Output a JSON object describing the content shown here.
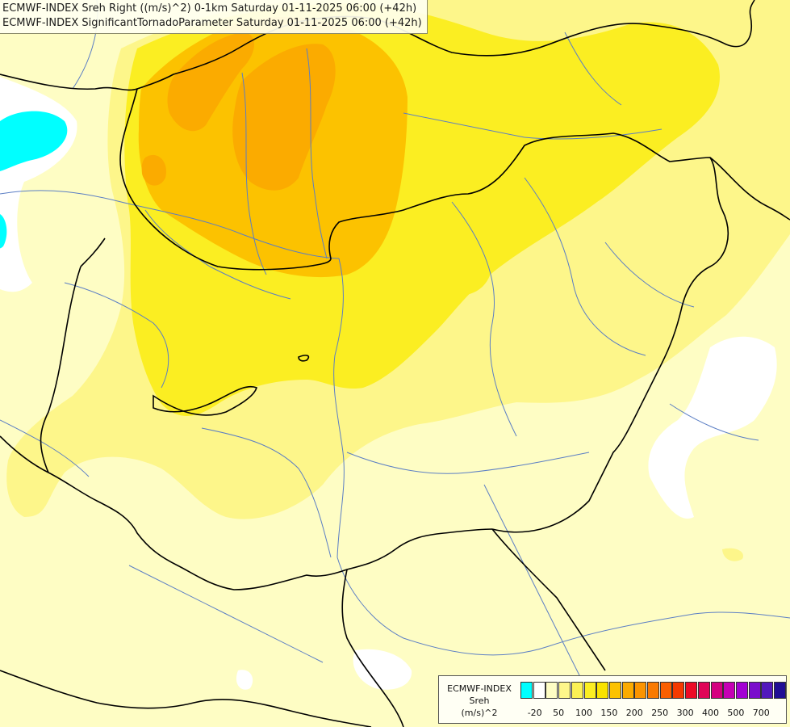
{
  "titles": {
    "line1": "ECMWF-INDEX Sreh Right ((m/s)^2) 0-1km Saturday 01-11-2025 06:00 (+42h)",
    "line2": "ECMWF-INDEX SignificantTornadoParameter Saturday 01-11-2025 06:00 (+42h)"
  },
  "legend": {
    "head1": "ECMWF-INDEX",
    "head2": "Sreh",
    "head3": "(m/s)^2",
    "swatches": [
      "#00ffff",
      "#ffffff",
      "#fefdc4",
      "#fdf68a",
      "#fcf155",
      "#fbee22",
      "#fae300",
      "#fcc200",
      "#fbab00",
      "#fb9400",
      "#f97a00",
      "#fa5f00",
      "#f53a00",
      "#ec0b26",
      "#df0557",
      "#d50080",
      "#c500b4",
      "#a300d3",
      "#7a0dcc",
      "#5218bc",
      "#200e94"
    ],
    "ticks": [
      "-20",
      "50",
      "100",
      "150",
      "200",
      "250",
      "300",
      "400",
      "500",
      "700"
    ]
  },
  "colors": {
    "background": "#fefdc4",
    "border_lines": "#000000",
    "rivers": "#5b7ec4",
    "yellow_light": "#fdf68a",
    "yellow": "#fbee22",
    "orange_light": "#fcc200",
    "orange": "#fbab00"
  }
}
